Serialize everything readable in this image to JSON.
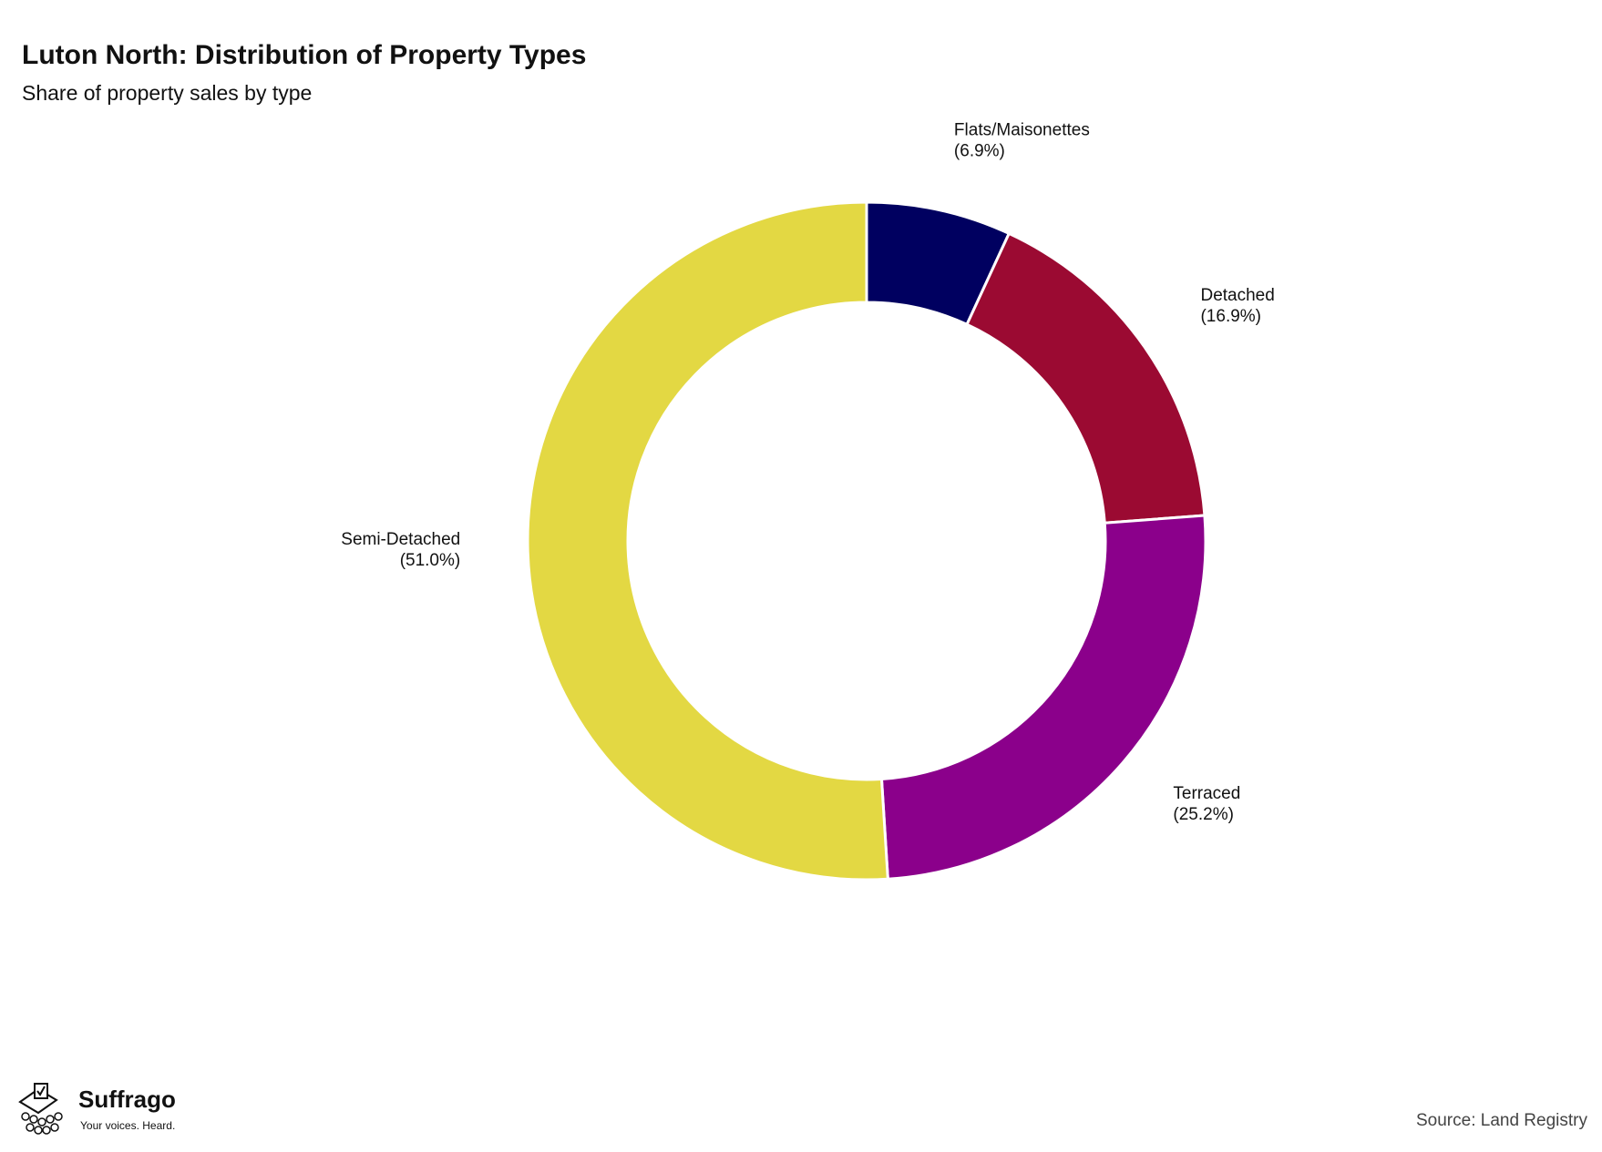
{
  "chart_data": {
    "type": "donut",
    "title": "Luton North: Distribution of Property Types",
    "subtitle": "Share of property sales by type",
    "categories": [
      "Flats/Maisonettes",
      "Detached",
      "Terraced",
      "Semi-Detached"
    ],
    "values": [
      6.9,
      16.9,
      25.2,
      51.0
    ],
    "value_labels": [
      "(6.9%)",
      "(16.9%)",
      "(25.2%)",
      "(51.0%)"
    ],
    "colors": [
      "#000060",
      "#9b0a32",
      "#8b008b",
      "#e3d843"
    ],
    "source": "Source: Land Registry"
  },
  "branding": {
    "name": "Suffrago",
    "tagline": "Your voices. Heard."
  }
}
